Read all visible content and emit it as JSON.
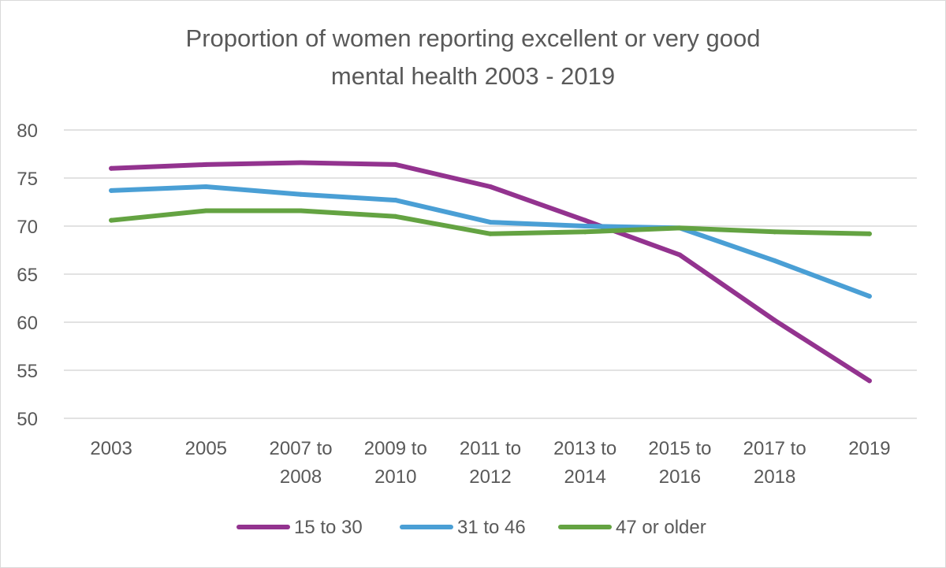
{
  "chart_data": {
    "type": "line",
    "title_lines": [
      "Proportion of women reporting excellent or very good",
      "mental health 2003 - 2019"
    ],
    "categories": [
      [
        "2003"
      ],
      [
        "2005"
      ],
      [
        "2007 to",
        "2008"
      ],
      [
        "2009 to",
        "2010"
      ],
      [
        "2011 to",
        "2012"
      ],
      [
        "2013 to",
        "2014"
      ],
      [
        "2015 to",
        "2016"
      ],
      [
        "2017 to",
        "2018"
      ],
      [
        "2019"
      ]
    ],
    "ylim": [
      50,
      80
    ],
    "yticks": [
      50,
      55,
      60,
      65,
      70,
      75,
      80
    ],
    "grid": true,
    "legend_position": "bottom",
    "series": [
      {
        "name": "15 to 30",
        "color": "#93338F",
        "values": [
          76.0,
          76.4,
          76.6,
          76.4,
          74.1,
          70.6,
          67.0,
          60.2,
          53.9
        ]
      },
      {
        "name": "31 to 46",
        "color": "#4A9FD5",
        "values": [
          73.7,
          74.1,
          73.3,
          72.7,
          70.4,
          70.0,
          69.8,
          66.4,
          62.7
        ]
      },
      {
        "name": "47 or older",
        "color": "#64A342",
        "values": [
          70.6,
          71.6,
          71.6,
          71.0,
          69.2,
          69.4,
          69.8,
          69.4,
          69.2
        ]
      }
    ]
  }
}
